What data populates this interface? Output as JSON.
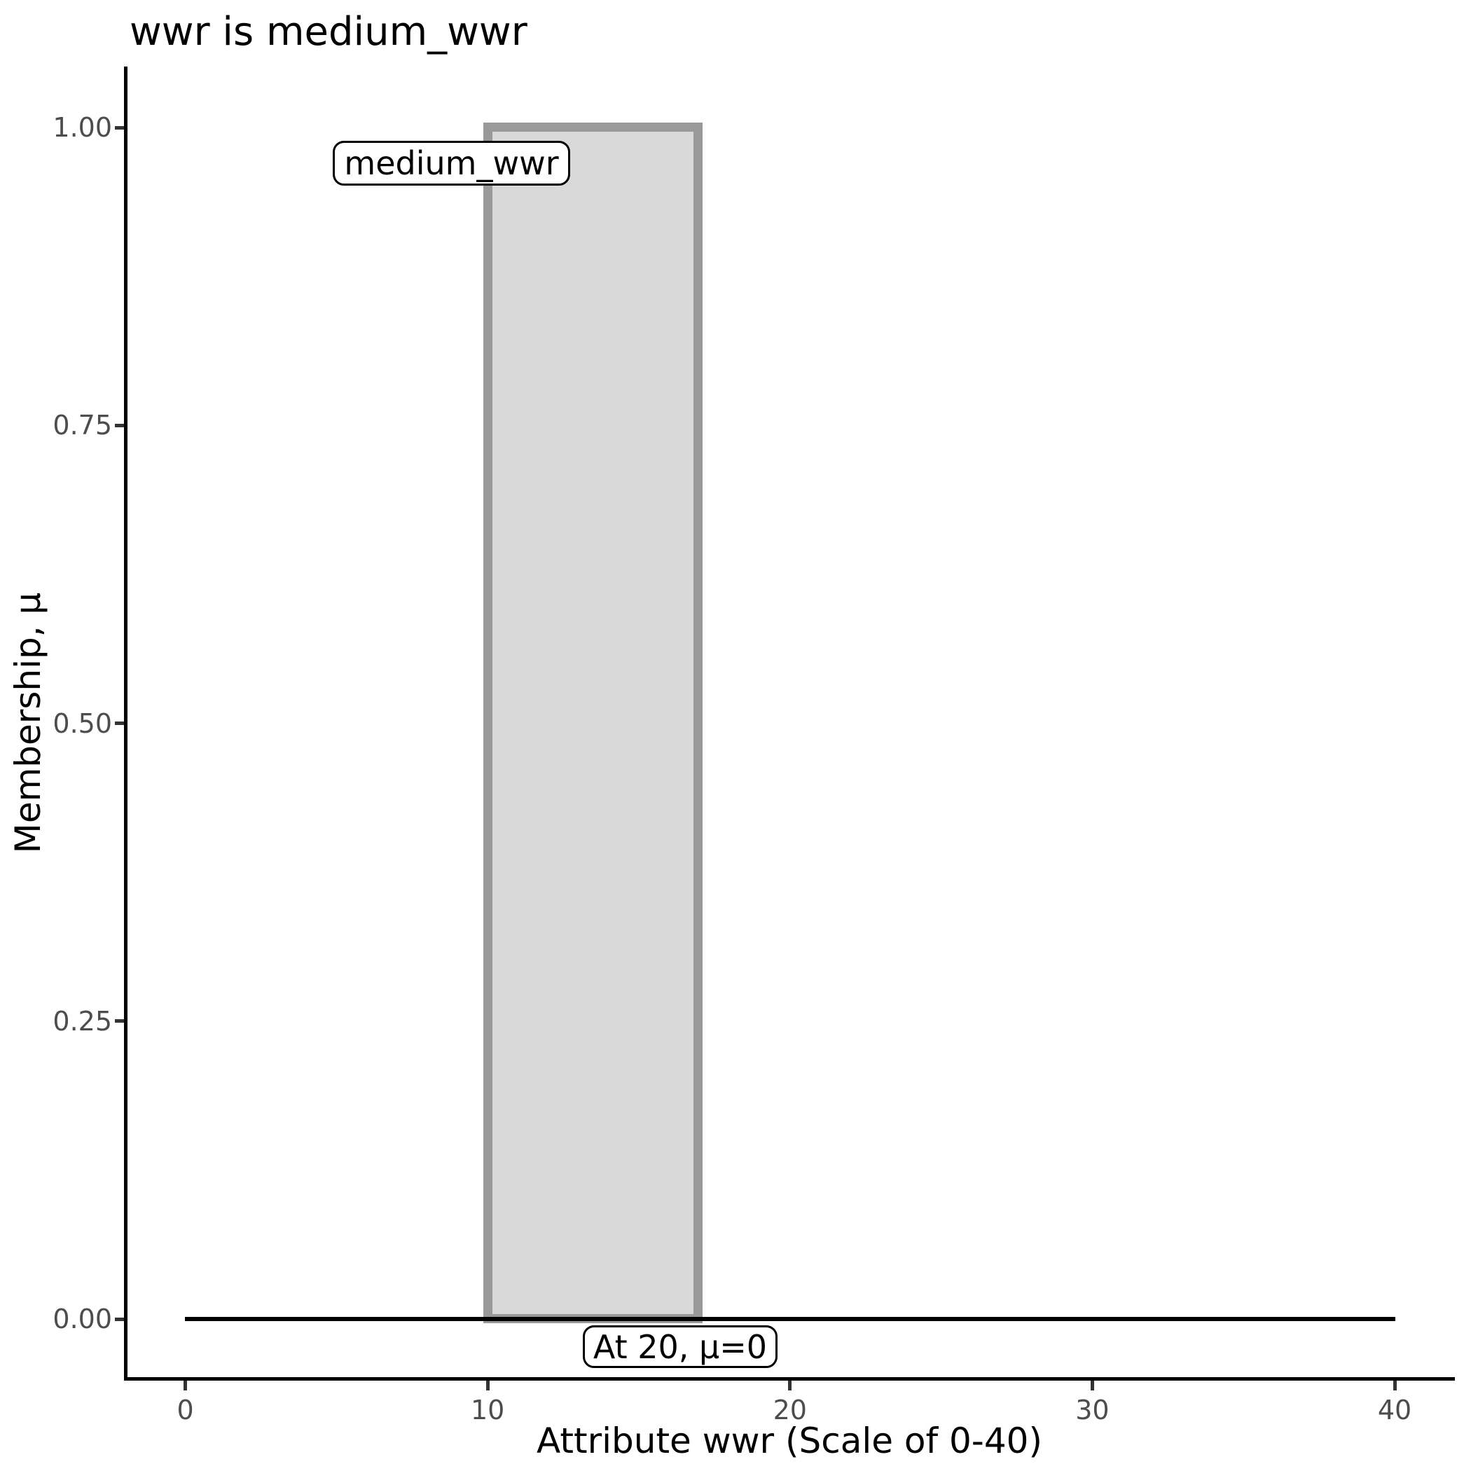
{
  "colors": {
    "background": "#ffffff",
    "axis_line": "#000000",
    "tick_mark": "#333333",
    "tick_label": "#4d4d4d",
    "text": "#000000",
    "bar_fill": "#d9d9d9",
    "bar_stroke": "#999999",
    "baseline": "#000000",
    "annotation_bg": "#ffffff",
    "annotation_border": "#000000"
  },
  "chart_data": {
    "type": "area",
    "title": "wwr is medium_wwr",
    "xlabel": "Attribute wwr (Scale of 0-40)",
    "ylabel": "Membership, μ",
    "xlim": [
      0,
      40
    ],
    "ylim": [
      0,
      1
    ],
    "grid": false,
    "legend": "none",
    "x_ticks": [
      0,
      10,
      20,
      30,
      40
    ],
    "x_tick_labels": [
      "0",
      "10",
      "20",
      "30",
      "40"
    ],
    "y_ticks": [
      0.0,
      0.25,
      0.5,
      0.75,
      1.0
    ],
    "y_tick_labels": [
      "0.00",
      "0.25",
      "0.50",
      "0.75",
      "1.00"
    ],
    "series": [
      {
        "name": "medium_wwr",
        "shape": "trapezoid",
        "points": [
          {
            "x": 10,
            "mu": 0
          },
          {
            "x": 10,
            "mu": 1
          },
          {
            "x": 17,
            "mu": 1
          },
          {
            "x": 17,
            "mu": 0
          }
        ]
      }
    ],
    "baseline": {
      "mu": 0,
      "x_from": 0,
      "x_to": 40
    },
    "annotations": [
      {
        "text": "medium_wwr",
        "anchor_x": 10,
        "anchor_mu": 1.0
      },
      {
        "text": "At 20, μ=0",
        "anchor_x": 20,
        "anchor_mu": 0.0
      }
    ]
  }
}
